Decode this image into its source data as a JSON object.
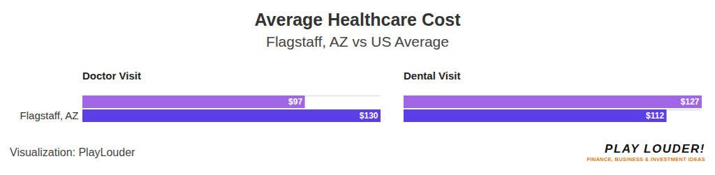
{
  "title": "Average Healthcare Cost",
  "subtitle": "Flagstaff, AZ vs US Average",
  "caption": "Visualization: PlayLouder",
  "logo": "PLAY LOUDER!",
  "logo_tagline": "FINANCE, BUSINESS & INVESTMENT IDEAS",
  "chart_data": [
    {
      "type": "bar",
      "orientation": "horizontal",
      "title": "Doctor Visit",
      "categories": [
        null,
        "Flagstaff, AZ"
      ],
      "values": [
        97,
        130
      ],
      "value_labels": [
        "$97",
        "$130"
      ],
      "colors": [
        "#a066e6",
        "#5b3ee4"
      ],
      "data_labels": true,
      "tick_labels": "y",
      "xlim": [
        0,
        130
      ]
    },
    {
      "type": "bar",
      "orientation": "horizontal",
      "title": "Dental Visit",
      "categories": [
        null,
        "Flagstaff, AZ"
      ],
      "values": [
        127,
        112
      ],
      "value_labels": [
        "$127",
        "$112"
      ],
      "colors": [
        "#a066e6",
        "#5b3ee4"
      ],
      "data_labels": true,
      "tick_labels": false,
      "xlim": [
        0,
        127
      ]
    }
  ]
}
